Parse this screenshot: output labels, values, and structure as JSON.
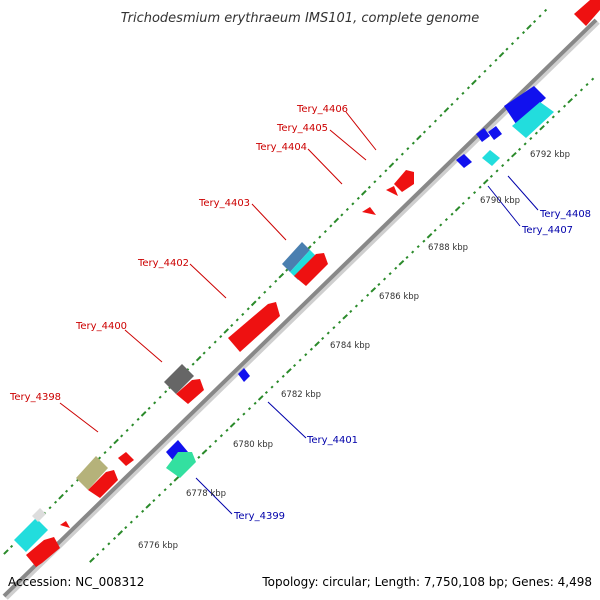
{
  "title": "Trichodesmium erythraeum IMS101, complete genome",
  "footer": {
    "accession": "Accession: NC_008312",
    "summary": "Topology: circular; Length: 7,750,108 bp; Genes: 4,498"
  },
  "colors": {
    "forward_label": "#cc0000",
    "reverse_label": "#0000aa",
    "backbone": "#888888",
    "tick_dots": "#2a8a2a"
  },
  "scale_ticks": [
    "6776 kbp",
    "6778 kbp",
    "6780 kbp",
    "6782 kbp",
    "6784 kbp",
    "6786 kbp",
    "6788 kbp",
    "6790 kbp",
    "6792 kbp"
  ],
  "gene_labels": [
    {
      "id": "Tery_4398",
      "strand": "forward"
    },
    {
      "id": "Tery_4399",
      "strand": "reverse"
    },
    {
      "id": "Tery_4400",
      "strand": "forward"
    },
    {
      "id": "Tery_4401",
      "strand": "reverse"
    },
    {
      "id": "Tery_4402",
      "strand": "forward"
    },
    {
      "id": "Tery_4403",
      "strand": "forward"
    },
    {
      "id": "Tery_4404",
      "strand": "forward"
    },
    {
      "id": "Tery_4405",
      "strand": "forward"
    },
    {
      "id": "Tery_4406",
      "strand": "forward"
    },
    {
      "id": "Tery_4407",
      "strand": "reverse"
    },
    {
      "id": "Tery_4408",
      "strand": "reverse"
    }
  ],
  "feature_colors": {
    "forward_cds": "#ee1111",
    "reverse_cds": "#1111ee",
    "rna_cyan": "#22dddd",
    "grey_block": "#666666",
    "olive_block": "#b5b27a",
    "steel_block": "#4a7fb0",
    "mint_block": "#33e0a0",
    "white_block": "#dddddd"
  }
}
